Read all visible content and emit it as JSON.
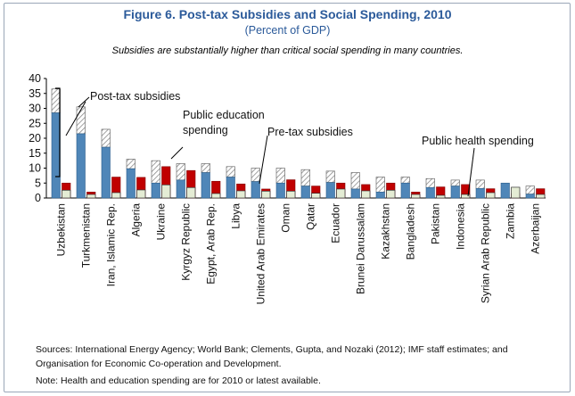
{
  "title": "Figure 6. Post-tax Subsidies and Social Spending, 2010",
  "subtitle": "(Percent of GDP)",
  "caption": "Subsidies are substantially higher than critical social spending in many countries.",
  "footnotes": {
    "sources_line1": "Sources: International Energy Agency; World Bank; Clements, Gupta, and Nozaki (2012); IMF staff estimates; and",
    "sources_line2": "Organisation for Economic Co-operation and Development.",
    "note": "Note: Health and education spending are for 2010 or latest available."
  },
  "annotations": {
    "post_tax": "Post-tax subsidies",
    "education_line1": "Public education",
    "education_line2": "spending",
    "pre_tax": "Pre-tax subsidies",
    "health": "Public health spending"
  },
  "colors": {
    "pre_tax": "#4f86b8",
    "post_tax_hatch": "#a0a0a0",
    "education": "#c00000",
    "health_fill": "#e4ecd4",
    "health_border": "#333333",
    "title": "#2b5a9a"
  },
  "chart_data": {
    "type": "bar",
    "ylim": [
      0,
      40
    ],
    "yticks": [
      0,
      5,
      10,
      15,
      20,
      25,
      30,
      35,
      40
    ],
    "categories": [
      "Uzbekistan",
      "Turkmenistan",
      "Iran, Islamic Rep.",
      "Algeria",
      "Ukraine",
      "Kyrgyz Republic",
      "Egypt, Arab Rep.",
      "Libya",
      "United Arab Emirates",
      "Oman",
      "Qatar",
      "Ecuador",
      "Brunei Darussalam",
      "Kazakhstan",
      "Bangladesh",
      "Pakistan",
      "Indonesia",
      "Syrian Arab Republic",
      "Zambia",
      "Azerbaijan"
    ],
    "series": [
      {
        "name": "Pre-tax subsidies",
        "values": [
          28.5,
          21.5,
          17.0,
          9.8,
          5.0,
          6.0,
          8.5,
          7.0,
          5.5,
          5.0,
          4.0,
          5.2,
          3.0,
          2.0,
          5.0,
          3.5,
          4.0,
          3.2,
          5.0,
          1.3
        ]
      },
      {
        "name": "Post-tax subsidies",
        "values": [
          36.5,
          30.5,
          23.0,
          13.0,
          12.5,
          11.5,
          11.5,
          10.5,
          10.0,
          10.0,
          9.5,
          9.0,
          8.5,
          7.0,
          7.0,
          6.5,
          6.0,
          6.0,
          5.0,
          4.0
        ]
      },
      {
        "name": "Public education spending",
        "values": [
          5.0,
          2.0,
          7.0,
          6.9,
          10.5,
          9.2,
          5.6,
          4.7,
          3.0,
          6.1,
          4.0,
          5.0,
          4.5,
          5.0,
          2.0,
          3.7,
          4.5,
          3.1,
          1.5,
          3.1
        ]
      },
      {
        "name": "Public health spending",
        "values": [
          2.6,
          1.2,
          1.8,
          2.7,
          4.4,
          3.5,
          1.5,
          2.4,
          2.3,
          2.3,
          1.6,
          3.0,
          2.4,
          2.6,
          1.2,
          0.9,
          1.2,
          1.8,
          3.6,
          1.2
        ]
      }
    ]
  }
}
